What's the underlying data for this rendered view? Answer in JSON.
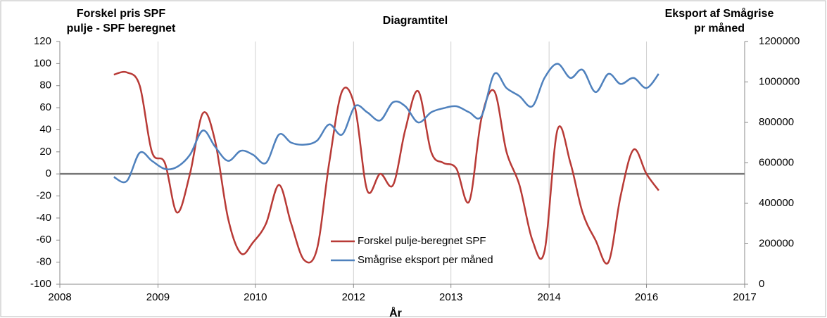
{
  "chart_data": {
    "type": "line",
    "title": "Diagramtitel",
    "ylabel": [
      "Forskel  pris SPF",
      "pulje - SPF beregnet"
    ],
    "y2label": [
      "Eksport af Smågrise",
      "pr måned"
    ],
    "xlabel": "År",
    "x": [
      2008.71,
      2008.88,
      2009.05,
      2009.21,
      2009.38,
      2009.54,
      2009.71,
      2009.88,
      2010.04,
      2010.21,
      2010.38,
      2010.54,
      2010.71,
      2010.88,
      2011.04,
      2011.21,
      2011.38,
      2011.54,
      2011.71,
      2011.88,
      2012.04,
      2012.21,
      2012.38,
      2012.54,
      2012.71,
      2012.88,
      2013.04,
      2013.21,
      2013.38,
      2013.54,
      2013.71,
      2013.87,
      2014.04,
      2014.21,
      2014.37,
      2014.54,
      2014.71,
      2014.87,
      2015.04,
      2015.21,
      2015.37,
      2015.54,
      2015.71,
      2015.87
    ],
    "series": [
      {
        "name": "Forskel pulje-beregnet SPF",
        "color": "#b83a36",
        "values": [
          90,
          92,
          80,
          20,
          10,
          -35,
          0,
          55,
          30,
          -40,
          -72,
          -62,
          -45,
          -10,
          -45,
          -78,
          -68,
          10,
          75,
          60,
          -15,
          0,
          -10,
          40,
          75,
          20,
          10,
          5,
          -25,
          50,
          75,
          20,
          -10,
          -60,
          -70,
          40,
          10,
          -35,
          -60,
          -80,
          -20,
          22,
          0,
          -15
        ]
      },
      {
        "name": "Smågrise eksport per måned",
        "color": "#4f81bd",
        "axis": "y2",
        "values": [
          530000,
          510000,
          650000,
          610000,
          570000,
          580000,
          640000,
          760000,
          680000,
          610000,
          660000,
          640000,
          600000,
          740000,
          700000,
          690000,
          710000,
          790000,
          740000,
          880000,
          850000,
          810000,
          900000,
          880000,
          800000,
          850000,
          870000,
          880000,
          850000,
          830000,
          1040000,
          970000,
          930000,
          880000,
          1020000,
          1090000,
          1020000,
          1060000,
          950000,
          1040000,
          990000,
          1020000,
          970000,
          1040000
        ]
      }
    ],
    "xlim": [
      2008,
      2017
    ],
    "xticks": [
      {
        "value": 2008,
        "label": "2008"
      },
      {
        "value": 2009.29,
        "label": "2009"
      },
      {
        "value": 2010.57,
        "label": "2010"
      },
      {
        "value": 2011.86,
        "label": "2012"
      },
      {
        "value": 2013.14,
        "label": "2013"
      },
      {
        "value": 2014.43,
        "label": "2014"
      },
      {
        "value": 2015.71,
        "label": "2016"
      },
      {
        "value": 2017,
        "label": "2017"
      }
    ],
    "ylim": [
      -100,
      120
    ],
    "yticks": [
      120,
      100,
      80,
      60,
      40,
      20,
      0,
      -20,
      -40,
      -60,
      -80,
      -100
    ],
    "y2lim": [
      0,
      1200000
    ],
    "y2ticks": [
      1200000,
      1000000,
      800000,
      600000,
      400000,
      200000,
      0
    ],
    "grid": true,
    "legend": "lower center"
  }
}
